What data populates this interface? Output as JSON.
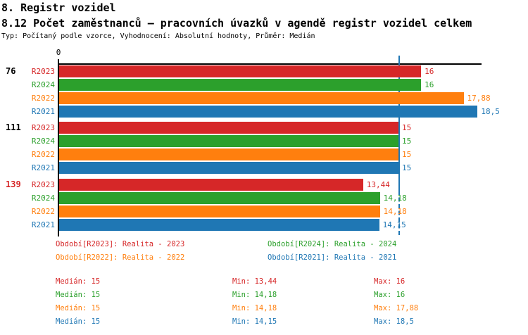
{
  "header": {
    "title": "8. Registr vozidel",
    "subtitle": "8.12 Počet zaměstnanců – pracovních úvazků v agendě registr vozidel celkem",
    "meta": "Typ: Počítaný podle vzorce, Vyhodnocení: Absolutní hodnoty, Průměr: Medián"
  },
  "colors": {
    "red": "#d62728",
    "green": "#2ca02c",
    "orange": "#ff7f0e",
    "blue": "#1f77b4",
    "axis": "#000000",
    "median_line": "#1f77b4",
    "group_label_default": "#000000",
    "group_label_highlight": "#d62728"
  },
  "chart_data": {
    "type": "bar",
    "orientation": "horizontal",
    "value_axis": {
      "zero_label": "0",
      "median_value": 15,
      "max_value": 18.5,
      "grid": false
    },
    "series": [
      {
        "id": "R2023",
        "color_key": "red"
      },
      {
        "id": "R2024",
        "color_key": "green"
      },
      {
        "id": "R2022",
        "color_key": "orange"
      },
      {
        "id": "R2021",
        "color_key": "blue"
      }
    ],
    "groups": [
      {
        "label": "76",
        "label_color_key": "group_label_default",
        "bars": [
          {
            "series": "R2023",
            "value": 16,
            "display": "16",
            "color_key": "red"
          },
          {
            "series": "R2024",
            "value": 16,
            "display": "16",
            "color_key": "green"
          },
          {
            "series": "R2022",
            "value": 17.88,
            "display": "17,88",
            "color_key": "orange"
          },
          {
            "series": "R2021",
            "value": 18.5,
            "display": "18,5",
            "color_key": "blue"
          }
        ]
      },
      {
        "label": "111",
        "label_color_key": "group_label_default",
        "bars": [
          {
            "series": "R2023",
            "value": 15,
            "display": "15",
            "color_key": "red"
          },
          {
            "series": "R2024",
            "value": 15,
            "display": "15",
            "color_key": "green"
          },
          {
            "series": "R2022",
            "value": 15,
            "display": "15",
            "color_key": "orange"
          },
          {
            "series": "R2021",
            "value": 15,
            "display": "15",
            "color_key": "blue"
          }
        ]
      },
      {
        "label": "139",
        "label_color_key": "group_label_highlight",
        "bars": [
          {
            "series": "R2023",
            "value": 13.44,
            "display": "13,44",
            "color_key": "red"
          },
          {
            "series": "R2024",
            "value": 14.18,
            "display": "14,18",
            "color_key": "green"
          },
          {
            "series": "R2022",
            "value": 14.18,
            "display": "14,18",
            "color_key": "orange"
          },
          {
            "series": "R2021",
            "value": 14.15,
            "display": "14,15",
            "color_key": "blue"
          }
        ]
      }
    ]
  },
  "legend": {
    "items": [
      {
        "label": "Období[R2023]: Realita - 2023",
        "color_key": "red",
        "col": 0,
        "row": 0
      },
      {
        "label": "Období[R2024]: Realita - 2024",
        "color_key": "green",
        "col": 1,
        "row": 0
      },
      {
        "label": "Období[R2022]: Realita - 2022",
        "color_key": "orange",
        "col": 0,
        "row": 1
      },
      {
        "label": "Období[R2021]: Realita - 2021",
        "color_key": "blue",
        "col": 1,
        "row": 1
      }
    ]
  },
  "stats": {
    "rows": [
      {
        "median": "Medián: 15",
        "min": "Min: 13,44",
        "max": "Max: 16",
        "color_key": "red"
      },
      {
        "median": "Medián: 15",
        "min": "Min: 14,18",
        "max": "Max: 16",
        "color_key": "green"
      },
      {
        "median": "Medián: 15",
        "min": "Min: 14,18",
        "max": "Max: 17,88",
        "color_key": "orange"
      },
      {
        "median": "Medián: 15",
        "min": "Min: 14,15",
        "max": "Max: 18,5",
        "color_key": "blue"
      }
    ]
  }
}
